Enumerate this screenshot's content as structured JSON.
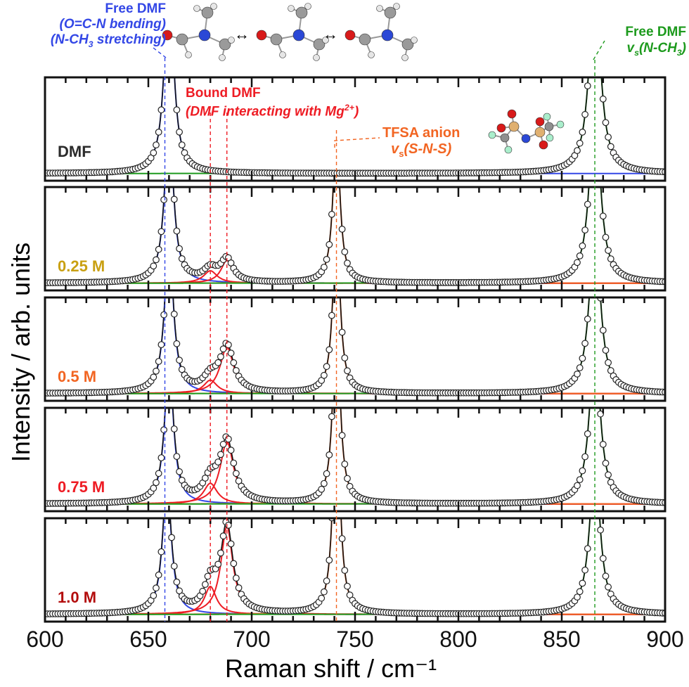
{
  "chart_data": {
    "type": "line",
    "xlabel": "Raman shift / cm⁻¹",
    "ylabel": "Intensity / arb. units",
    "xlim": [
      600,
      900
    ],
    "xticks": [
      "600",
      "650",
      "700",
      "750",
      "800",
      "850",
      "900"
    ],
    "grid": false,
    "reference_lines": [
      658,
      680,
      688,
      741,
      866
    ],
    "panels": [
      {
        "label": "DMF",
        "label_color": "#2b2b2b",
        "components": [
          {
            "center": 660,
            "amp": 2.0,
            "hwhm": 2.5,
            "color": "#3347e6"
          },
          {
            "center": 866,
            "amp": 2.0,
            "hwhm": 3.0,
            "color": "#1d9a1d"
          }
        ]
      },
      {
        "label": "0.25 M",
        "label_color": "#c9a012",
        "components": [
          {
            "center": 660,
            "amp": 1.6,
            "hwhm": 2.5,
            "color": "#3347e6"
          },
          {
            "center": 680,
            "amp": 0.12,
            "hwhm": 4,
            "color": "#ee1c24"
          },
          {
            "center": 688,
            "amp": 0.22,
            "hwhm": 3.5,
            "color": "#ee1c24"
          },
          {
            "center": 741,
            "amp": 1.5,
            "hwhm": 2.0,
            "color": "#f26522"
          },
          {
            "center": 866,
            "amp": 1.8,
            "hwhm": 3.0,
            "color": "#1d9a1d"
          }
        ]
      },
      {
        "label": "0.5 M",
        "label_color": "#f26522",
        "components": [
          {
            "center": 660,
            "amp": 1.5,
            "hwhm": 2.5,
            "color": "#3347e6"
          },
          {
            "center": 680,
            "amp": 0.13,
            "hwhm": 4,
            "color": "#ee1c24"
          },
          {
            "center": 688,
            "amp": 0.45,
            "hwhm": 4,
            "color": "#ee1c24"
          },
          {
            "center": 741,
            "amp": 1.7,
            "hwhm": 2.0,
            "color": "#f26522"
          },
          {
            "center": 866,
            "amp": 1.7,
            "hwhm": 3.0,
            "color": "#1d9a1d"
          }
        ]
      },
      {
        "label": "0.75 M",
        "label_color": "#ee1c24",
        "components": [
          {
            "center": 660,
            "amp": 1.4,
            "hwhm": 2.5,
            "color": "#3347e6"
          },
          {
            "center": 680,
            "amp": 0.2,
            "hwhm": 4,
            "color": "#ee1c24"
          },
          {
            "center": 688,
            "amp": 0.6,
            "hwhm": 4,
            "color": "#ee1c24"
          },
          {
            "center": 741,
            "amp": 1.9,
            "hwhm": 2.0,
            "color": "#f26522"
          },
          {
            "center": 866,
            "amp": 1.6,
            "hwhm": 3.0,
            "color": "#1d9a1d"
          }
        ]
      },
      {
        "label": "1.0 M",
        "label_color": "#b30c0c",
        "components": [
          {
            "center": 659,
            "amp": 1.3,
            "hwhm": 2.5,
            "color": "#3347e6"
          },
          {
            "center": 680,
            "amp": 0.27,
            "hwhm": 3.5,
            "color": "#ee1c24"
          },
          {
            "center": 688,
            "amp": 0.85,
            "hwhm": 3.5,
            "color": "#ee1c24"
          },
          {
            "center": 741,
            "amp": 2.1,
            "hwhm": 2.0,
            "color": "#f26522"
          },
          {
            "center": 866,
            "amp": 1.5,
            "hwhm": 3.0,
            "color": "#1d9a1d"
          }
        ]
      }
    ]
  },
  "annotations": {
    "free_dmf_left": {
      "title": "Free DMF",
      "line1": "(O=C-N bending)",
      "line2_a": "(N-CH",
      "line2_sub": "3",
      "line2_b": " stretching)",
      "color": "#3347e6"
    },
    "bound_dmf": {
      "title": "Bound DMF",
      "line_a": "(DMF interacting with Mg",
      "line_sup": "2+",
      "line_b": ")",
      "color": "#ee1c24"
    },
    "tfsa": {
      "title": "TFSA anion",
      "v": "v",
      "v_sub": "s",
      "rest": "(S-N-S)",
      "color": "#f26522"
    },
    "free_dmf_right": {
      "title": "Free DMF",
      "v": "v",
      "v_sub": "s",
      "a": "(N-CH",
      "a_sub": "3",
      "b": ")",
      "color": "#1d9a1d"
    },
    "resonance_arrow": "↔"
  }
}
